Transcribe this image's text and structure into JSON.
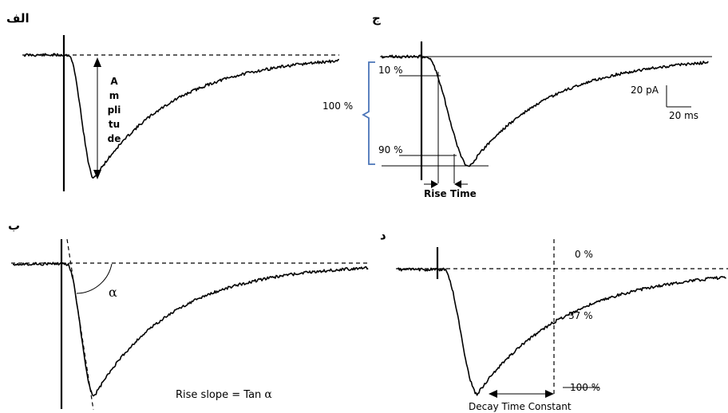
{
  "panels": {
    "alef": {
      "letter": "الف",
      "amplitude_label": [
        "A",
        "m",
        "pli",
        "tu",
        "de"
      ]
    },
    "be": {
      "letter": "ب",
      "alpha_symbol": "α",
      "rise_slope_text": "Rise slope = Tan ",
      "rise_slope_symbol": "α"
    },
    "jim": {
      "letter": "ج",
      "pct_10": "10 %",
      "pct_90": "90 %",
      "pct_100": "100 %",
      "rise_time": "Rise Time",
      "scale_y": "20 pA",
      "scale_x": "20 ms"
    },
    "dal": {
      "letter": "د",
      "pct_0": "0 %",
      "pct_37": "37 %",
      "pct_100": "100 %",
      "decay_time": "Decay Time Constant"
    }
  }
}
